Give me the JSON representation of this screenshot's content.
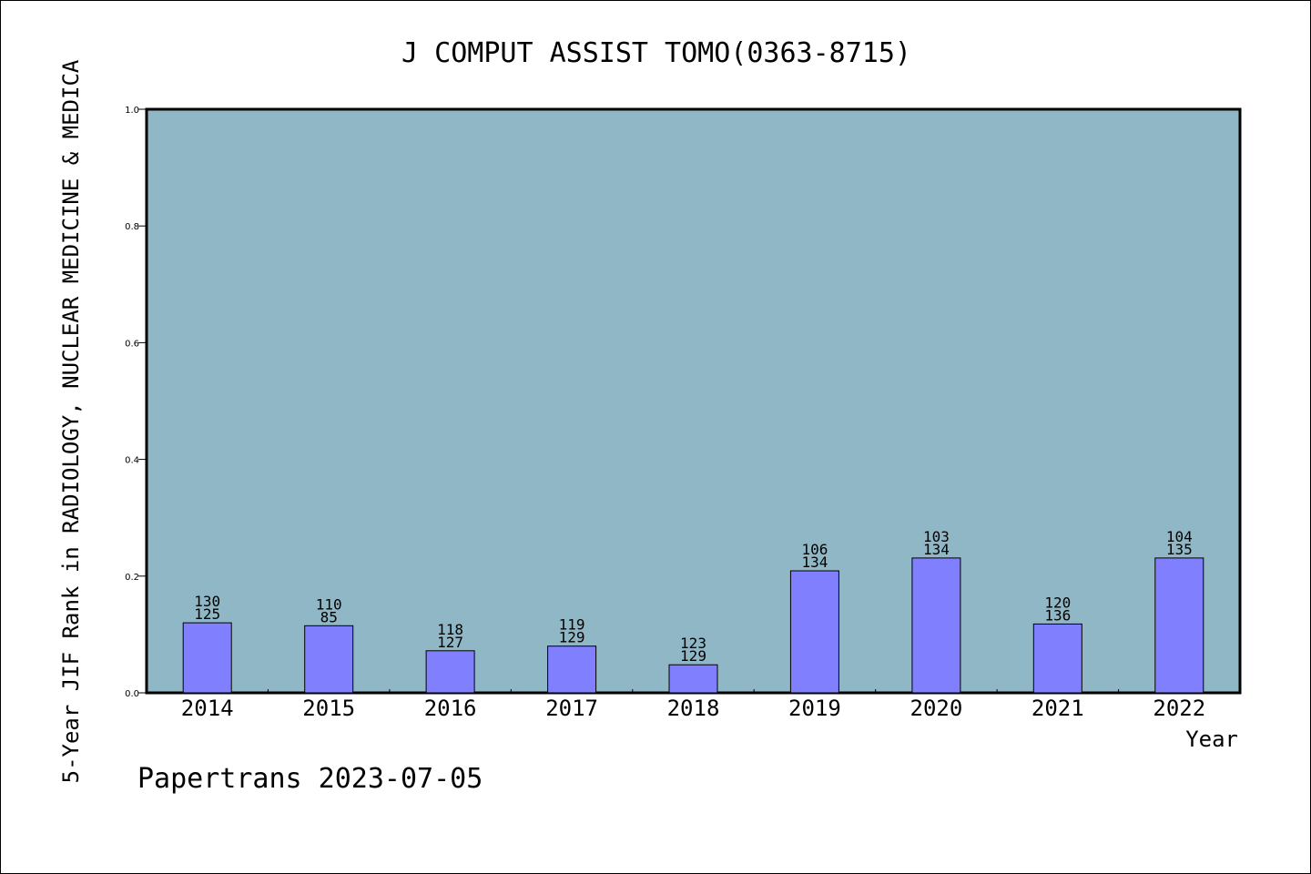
{
  "chart_data": {
    "type": "bar",
    "title": "J COMPUT ASSIST TOMO(0363-8715)",
    "xlabel": "Year",
    "ylabel": "5-Year JIF Rank in RADIOLOGY, NUCLEAR MEDICINE & MEDICA",
    "ylim": [
      0,
      1.0
    ],
    "yticks": [
      "0.0",
      "0.2",
      "0.4",
      "0.6",
      "0.8",
      "1.0"
    ],
    "grid": false,
    "categories": [
      "2014",
      "2015",
      "2016",
      "2017",
      "2018",
      "2019",
      "2020",
      "2021",
      "2022"
    ],
    "values": [
      0.12,
      0.115,
      0.072,
      0.08,
      0.048,
      0.209,
      0.231,
      0.118,
      0.231
    ],
    "labels_top": [
      "130",
      "110",
      "118",
      "119",
      "123",
      "106",
      "103",
      "120",
      "104"
    ],
    "labels_bottom": [
      "125",
      "85",
      "127",
      "129",
      "129",
      "134",
      "134",
      "136",
      "135"
    ],
    "colors": {
      "plot_background": "#8fb7c5",
      "bar_fill": "#8080ff",
      "bar_stroke": "#000000"
    }
  },
  "footer": "Papertrans 2023-07-05"
}
